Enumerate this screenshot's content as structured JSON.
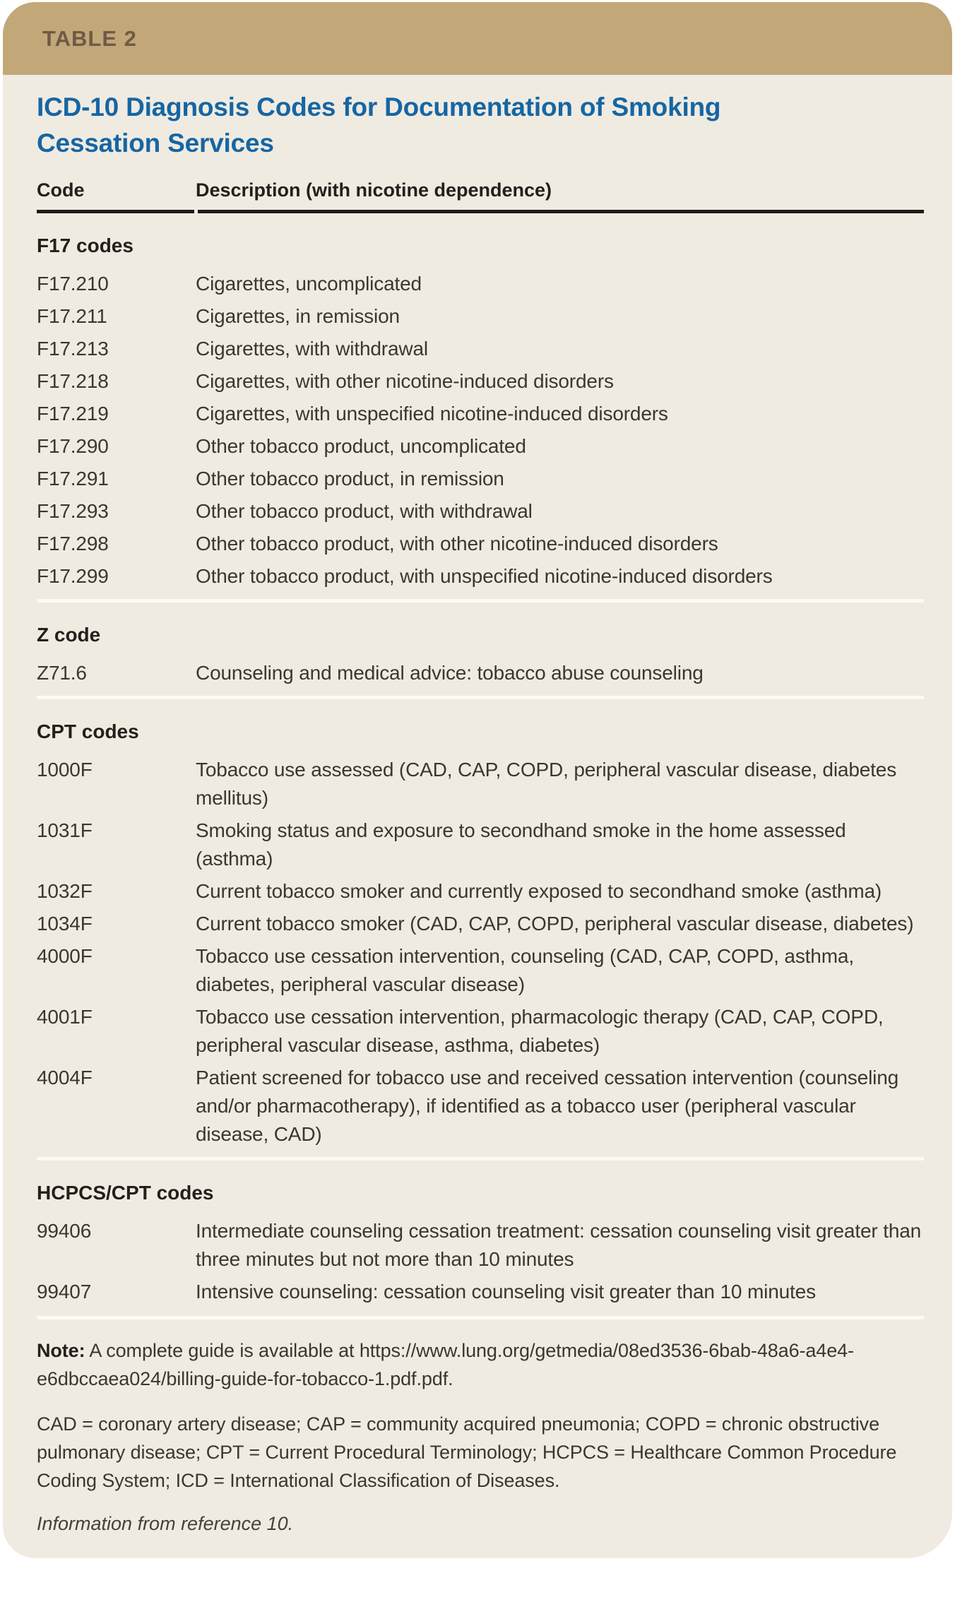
{
  "table_label": "TABLE 2",
  "title": "ICD-10 Diagnosis Codes for Documentation of Smoking Cessation Services",
  "columns": {
    "code": "Code",
    "description": "Description (with nicotine dependence)"
  },
  "sections": [
    {
      "header": "F17 codes",
      "rows": [
        {
          "code": "F17.210",
          "description": "Cigarettes, uncomplicated"
        },
        {
          "code": "F17.211",
          "description": "Cigarettes, in remission"
        },
        {
          "code": "F17.213",
          "description": "Cigarettes, with withdrawal"
        },
        {
          "code": "F17.218",
          "description": "Cigarettes, with other nicotine-induced disorders"
        },
        {
          "code": "F17.219",
          "description": "Cigarettes, with unspecified nicotine-induced disorders"
        },
        {
          "code": "F17.290",
          "description": "Other tobacco product, uncomplicated"
        },
        {
          "code": "F17.291",
          "description": "Other tobacco product, in remission"
        },
        {
          "code": "F17.293",
          "description": "Other tobacco product, with withdrawal"
        },
        {
          "code": "F17.298",
          "description": "Other tobacco product, with other nicotine-induced disorders"
        },
        {
          "code": "F17.299",
          "description": "Other tobacco product, with unspecified nicotine-induced disorders"
        }
      ]
    },
    {
      "header": "Z code",
      "rows": [
        {
          "code": "Z71.6",
          "description": "Counseling and medical advice: tobacco abuse counseling"
        }
      ]
    },
    {
      "header": "CPT codes",
      "rows": [
        {
          "code": "1000F",
          "description": "Tobacco use assessed (CAD, CAP, COPD, peripheral vascular disease, diabetes mellitus)"
        },
        {
          "code": "1031F",
          "description": "Smoking status and exposure to secondhand smoke in the home assessed (asthma)"
        },
        {
          "code": "1032F",
          "description": "Current tobacco smoker and currently exposed to secondhand smoke (asthma)"
        },
        {
          "code": "1034F",
          "description": "Current tobacco smoker (CAD, CAP, COPD, peripheral vascular disease, diabetes)"
        },
        {
          "code": "4000F",
          "description": "Tobacco use cessation intervention, counseling (CAD, CAP, COPD, asthma, diabetes, peripheral vascular disease)"
        },
        {
          "code": "4001F",
          "description": "Tobacco use cessation intervention, pharmacologic therapy (CAD, CAP, COPD, peripheral vascular disease, asthma, diabetes)"
        },
        {
          "code": "4004F",
          "description": "Patient screened for tobacco use and received cessation intervention (counseling and/or pharmacotherapy), if identified as a tobacco user (peripheral vascular disease, CAD)"
        }
      ]
    },
    {
      "header": "HCPCS/CPT codes",
      "rows": [
        {
          "code": "99406",
          "description": "Intermediate counseling cessation treatment: cessation counseling visit greater than three minutes but not more than 10 minutes"
        },
        {
          "code": "99407",
          "description": "Intensive counseling: cessation counseling visit greater than 10 minutes"
        }
      ]
    }
  ],
  "footnotes": {
    "note_label": "Note:",
    "note_text": " A complete guide is available at https://www.lung.org/getmedia/08ed3536-6bab-48a6-a4e4-e6dbccaea024/billing-guide-for-tobacco-1.pdf.pdf.",
    "abbreviations": "CAD = coronary artery disease; CAP = community acquired pneumonia; COPD = chronic obstructive pulmonary disease; CPT = Current Procedural Terminology; HCPCS = Healthcare Common Procedure Coding System; ICD = International Classification of Diseases.",
    "source": "Information from reference 10."
  },
  "colors": {
    "header_bg": "#C2A878",
    "body_bg": "#F0EBE1",
    "label_brown": "#6F5A48",
    "title_blue": "#1566A4",
    "heading_dark": "#23201C",
    "text": "#3A3631",
    "text_soft": "#45413B",
    "rule_dark": "#1D1B18",
    "divider_light": "#FCFAF4"
  }
}
